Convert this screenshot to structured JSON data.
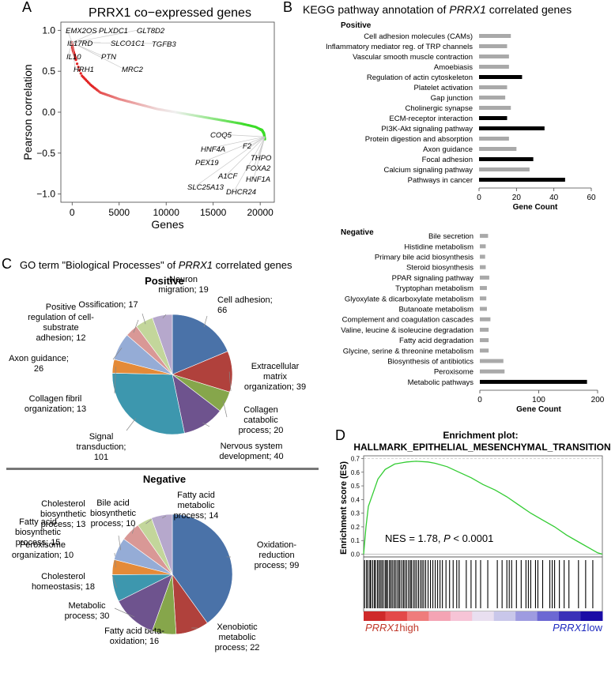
{
  "panels": {
    "A": {
      "letter": "A"
    },
    "B": {
      "letter": "B"
    },
    "C": {
      "letter": "C"
    },
    "D": {
      "letter": "D"
    }
  },
  "chart_data": [
    {
      "id": "A",
      "type": "scatter",
      "title": "PRRX1 co−expressed genes",
      "xlabel": "Genes",
      "ylabel": "Pearson correlation",
      "xlim": [
        -1200,
        21500
      ],
      "ylim": [
        -1.1,
        1.1
      ],
      "xticks": [
        0,
        5000,
        10000,
        15000,
        20000
      ],
      "yticks": [
        -1.0,
        -0.5,
        0.0,
        0.5,
        1.0
      ],
      "ytick_labels": [
        "−1.0",
        "−0.5",
        "0.0",
        "0.5",
        "1.0"
      ],
      "n_genes": 20500,
      "curve_points": [
        [
          0,
          0.85
        ],
        [
          20,
          0.8
        ],
        [
          100,
          0.75
        ],
        [
          250,
          0.7
        ],
        [
          500,
          0.6
        ],
        [
          1000,
          0.45
        ],
        [
          2000,
          0.33
        ],
        [
          3000,
          0.24
        ],
        [
          4000,
          0.2
        ],
        [
          5000,
          0.16
        ],
        [
          7000,
          0.1
        ],
        [
          9000,
          0.04
        ],
        [
          10000,
          0.02
        ],
        [
          11000,
          0.0
        ],
        [
          12000,
          -0.02
        ],
        [
          14000,
          -0.06
        ],
        [
          16000,
          -0.1
        ],
        [
          18000,
          -0.14
        ],
        [
          19500,
          -0.18
        ],
        [
          20200,
          -0.22
        ],
        [
          20400,
          -0.26
        ],
        [
          20500,
          -0.33
        ]
      ],
      "positive_labels": [
        "EMX2OS",
        "PLXDC1",
        "GLT8D2",
        "IL17RD",
        "SLCO1C1",
        "TGFB3",
        "IL10",
        "PTN",
        "HRH1",
        "MRC2"
      ],
      "negative_labels": [
        "COQ5",
        "F2",
        "HNF4A",
        "THPO",
        "PEX19",
        "FOXA2",
        "A1CF",
        "HNF1A",
        "SLC25A13",
        "DHCR24"
      ]
    },
    {
      "id": "B-positive",
      "type": "bar",
      "title_prefix": "KEGG pathway annotation of ",
      "title_gene": "PRRX1",
      "title_suffix": " correlated genes",
      "subtitle": "Positive",
      "xlabel": "Gene Count",
      "xlim": [
        0,
        60
      ],
      "xticks": [
        0,
        20,
        40,
        60
      ],
      "categories": [
        "Cell adhesion molecules (CAMs)",
        "Inflammatory mediator reg. of TRP channels",
        "Vascular smooth muscle contraction",
        "Amoebiasis",
        "Regulation of actin cytoskeleton",
        "Platelet activation",
        "Gap junction",
        "Cholinergic synapse",
        "ECM-receptor interaction",
        "PI3K-Akt signaling pathway",
        "Protein digestion and absorption",
        "Axon guidance",
        "Focal adhesion",
        "Calcium signaling pathway",
        "Pathways in cancer"
      ],
      "values": [
        17,
        15,
        16,
        16,
        23,
        15,
        14,
        17,
        15,
        35,
        16,
        20,
        29,
        27,
        46
      ],
      "highlight": [
        false,
        false,
        false,
        false,
        true,
        false,
        false,
        false,
        true,
        true,
        false,
        false,
        true,
        false,
        true
      ]
    },
    {
      "id": "B-negative",
      "type": "bar",
      "subtitle": "Negative",
      "xlabel": "Gene Count",
      "xlim": [
        0,
        200
      ],
      "xticks": [
        0,
        100,
        200
      ],
      "categories": [
        "Bile secretion",
        "Histidine metabolism",
        "Primary bile acid biosynthesis",
        "Steroid biosynthesis",
        "PPAR signaling pathway",
        "Tryptophan metabolism",
        "Glyoxylate & dicarboxylate metabolism",
        "Butanoate metabolism",
        "Complement and coagulation cascades",
        "Valine, leucine & isoleucine degradation",
        "Fatty acid degradation",
        "Glycine, serine & threonine metabolism",
        "Biosynthesis of antibiotics",
        "Peroxisome",
        "Metabolic pathways"
      ],
      "values": [
        14,
        10,
        9,
        10,
        16,
        12,
        11,
        12,
        18,
        15,
        15,
        15,
        40,
        42,
        182
      ],
      "highlight": [
        false,
        false,
        false,
        false,
        false,
        false,
        false,
        false,
        false,
        false,
        false,
        false,
        false,
        false,
        true
      ]
    },
    {
      "id": "C-positive",
      "type": "pie",
      "title_prefix": "GO term \"Biological Processes\" of ",
      "title_gene": "PRRX1",
      "title_suffix": " correlated genes",
      "subtitle": "Positive",
      "slices": [
        {
          "label": "Cell adhesion; 66",
          "value": 66,
          "color": "#4a72a8"
        },
        {
          "label": "Extracellular matrix organization; 39",
          "value": 39,
          "color": "#b0413c"
        },
        {
          "label": "Collagen catabolic process; 20",
          "value": 20,
          "color": "#86a64b"
        },
        {
          "label": "Nervous system development; 40",
          "value": 40,
          "color": "#6e538e"
        },
        {
          "label": "Signal transduction; 101",
          "value": 101,
          "color": "#3d97ae"
        },
        {
          "label": "Collagen fibril organization; 13",
          "value": 13,
          "color": "#e48a38"
        },
        {
          "label": "Axon guidance; 26",
          "value": 26,
          "color": "#95acd6"
        },
        {
          "label": "Positive regulation of cell-substrate adhesion; 12",
          "value": 12,
          "color": "#d99896"
        },
        {
          "label": "Ossification; 17",
          "value": 17,
          "color": "#c3d69b"
        },
        {
          "label": "Neuron migration; 19",
          "value": 19,
          "color": "#b6a8cc"
        }
      ]
    },
    {
      "id": "C-negative",
      "type": "pie",
      "subtitle": "Negative",
      "slices": [
        {
          "label": "Oxidation-reduction process; 99",
          "value": 99,
          "color": "#4a72a8"
        },
        {
          "label": "Xenobiotic metabolic process; 22",
          "value": 22,
          "color": "#b0413c"
        },
        {
          "label": "Fatty acid beta-oxidation; 16",
          "value": 16,
          "color": "#86a64b"
        },
        {
          "label": "Metabolic process; 30",
          "value": 30,
          "color": "#6e538e"
        },
        {
          "label": "Cholesterol homeostasis; 18",
          "value": 18,
          "color": "#3d97ae"
        },
        {
          "label": "Peroxisome organization; 10",
          "value": 10,
          "color": "#e48a38"
        },
        {
          "label": "Fatty acid biosynthetic process; 15",
          "value": 15,
          "color": "#95acd6"
        },
        {
          "label": "Cholesterol biosynthetic process; 13",
          "value": 13,
          "color": "#d99896"
        },
        {
          "label": "Bile acid biosynthetic process; 10",
          "value": 10,
          "color": "#c3d69b"
        },
        {
          "label": "Fatty acid metabolic process; 14",
          "value": 14,
          "color": "#b6a8cc"
        }
      ]
    },
    {
      "id": "D",
      "type": "line",
      "title": "Enrichment plot:",
      "subtitle": "HALLMARK_EPITHELIAL_MESENCHYMAL_TRANSITION",
      "ylabel": "Enrichment score (ES)",
      "ylim": [
        -0.02,
        0.72
      ],
      "yticks": [
        0.0,
        0.1,
        0.2,
        0.3,
        0.4,
        0.5,
        0.6,
        0.7
      ],
      "ytick_labels": [
        "0.0",
        "0.1",
        "0.2",
        "0.3",
        "0.4",
        "0.5",
        "0.6",
        "0.7"
      ],
      "annotation_nes": "NES = 1.78, ",
      "annotation_p": "P",
      "annotation_rest": " < 0.0001",
      "es_curve": [
        [
          0,
          0.0
        ],
        [
          0.01,
          0.2
        ],
        [
          0.02,
          0.35
        ],
        [
          0.04,
          0.45
        ],
        [
          0.06,
          0.55
        ],
        [
          0.09,
          0.62
        ],
        [
          0.13,
          0.66
        ],
        [
          0.18,
          0.675
        ],
        [
          0.22,
          0.68
        ],
        [
          0.27,
          0.675
        ],
        [
          0.3,
          0.665
        ],
        [
          0.35,
          0.64
        ],
        [
          0.4,
          0.6
        ],
        [
          0.45,
          0.56
        ],
        [
          0.5,
          0.51
        ],
        [
          0.55,
          0.47
        ],
        [
          0.6,
          0.42
        ],
        [
          0.65,
          0.36
        ],
        [
          0.7,
          0.3
        ],
        [
          0.75,
          0.25
        ],
        [
          0.8,
          0.2
        ],
        [
          0.85,
          0.14
        ],
        [
          0.9,
          0.09
        ],
        [
          0.95,
          0.04
        ],
        [
          0.98,
          0.01
        ],
        [
          1.0,
          0.0
        ]
      ],
      "hit_positions": [
        0.004,
        0.012,
        0.018,
        0.026,
        0.03,
        0.038,
        0.045,
        0.05,
        0.058,
        0.064,
        0.07,
        0.076,
        0.082,
        0.09,
        0.095,
        0.1,
        0.108,
        0.114,
        0.12,
        0.127,
        0.133,
        0.14,
        0.147,
        0.152,
        0.16,
        0.167,
        0.173,
        0.18,
        0.188,
        0.195,
        0.2,
        0.208,
        0.215,
        0.222,
        0.23,
        0.238,
        0.245,
        0.252,
        0.26,
        0.27,
        0.28,
        0.29,
        0.3,
        0.31,
        0.32,
        0.33,
        0.345,
        0.36,
        0.375,
        0.39,
        0.4,
        0.43,
        0.45,
        0.47,
        0.49,
        0.52,
        0.56,
        0.58,
        0.6,
        0.61,
        0.62,
        0.64,
        0.66,
        0.68,
        0.69,
        0.7,
        0.72,
        0.73,
        0.75,
        0.78,
        0.79,
        0.8,
        0.82,
        0.84,
        0.86,
        0.9,
        0.93,
        0.96
      ],
      "gradient_colors": [
        "#cf2a2a",
        "#e34a4a",
        "#ef7c7c",
        "#f4a4b4",
        "#f6c4d6",
        "#e9dff0",
        "#c9c7ea",
        "#9e9be0",
        "#6c68d3",
        "#3a31b8",
        "#1a0ca6"
      ],
      "high_label_gene": "PRRX1",
      "high_label_suffix": "high",
      "low_label_gene": "PRRX1",
      "low_label_suffix": "low",
      "high_color": "#c0392b",
      "low_color": "#1f2bbf"
    }
  ]
}
